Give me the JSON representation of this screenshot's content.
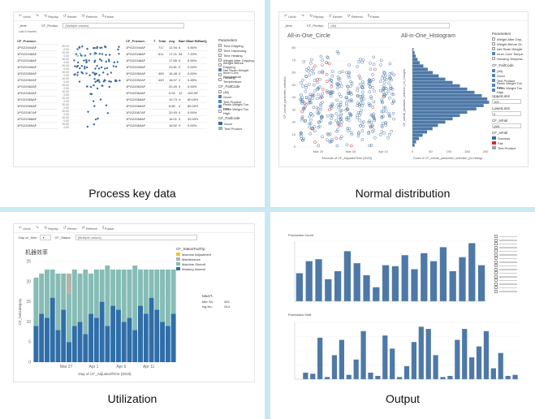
{
  "toolbar": {
    "undo": "Undo",
    "redo": "Redo",
    "replay": "Replay",
    "revert": "Revert",
    "refresh": "Refresh",
    "pause": "Pause"
  },
  "q1": {
    "caption": "Process key data",
    "filter_label": "_time",
    "filter_sub": "Last 4 months",
    "filter2_label": "CF_Produc..",
    "filter2_value": "(Multiple values)",
    "table_header": [
      "CF_Product..",
      "T",
      "Total",
      "Avg",
      "Bad Co..",
      "Bad Ra..",
      "BadQu.."
    ],
    "rows": [
      {
        "id": "1PG22044AF",
        "total": "717",
        "avg": "12.94",
        "bc": "6",
        "br": "0.84%"
      },
      {
        "id": "1PG22046AF",
        "total": "611",
        "avg": "17.21",
        "bc": "44",
        "br": "7.20%"
      },
      {
        "id": "1PG22048AF",
        "total": "",
        "avg": "17.55",
        "bc": "0",
        "br": "0.00%"
      },
      {
        "id": "1PG22049AF",
        "total": "",
        "avg": "23.81",
        "bc": "0",
        "br": "0.00%"
      },
      {
        "id": "1PG22050AF",
        "total": "469",
        "avg": "16.48",
        "bc": "0",
        "br": "0.00%"
      },
      {
        "id": "1PG22052AF",
        "total": "440",
        "avg": "18.97",
        "bc": "2",
        "br": "0.45%"
      },
      {
        "id": "1PG22062AF",
        "total": "",
        "avg": "20.49",
        "bc": "0",
        "br": "0.00%"
      },
      {
        "id": "1PG22064AF",
        "total": "",
        "avg": "0.02",
        "bc": "12",
        "br": "100.00%"
      },
      {
        "id": "1PG22065AF",
        "total": "",
        "avg": "10.73",
        "bc": "4",
        "br": "80.00%"
      },
      {
        "id": "1PG22066AF",
        "total": "",
        "avg": "8.60",
        "bc": "4",
        "br": "80.00%"
      },
      {
        "id": "1PG22067AF",
        "total": "",
        "avg": "20.93",
        "bc": "0",
        "br": "0.00%"
      },
      {
        "id": "1PG22068AF",
        "total": "",
        "avg": "16.01",
        "bc": "3",
        "br": "33.33%"
      },
      {
        "id": "1PG22069AF",
        "total": "",
        "avg": "18.92",
        "bc": "0",
        "br": "0.00%"
      }
    ],
    "axis_ticks": [
      "20.00",
      "0.00"
    ],
    "params_title": "Parameters",
    "params": [
      {
        "label": "Time Dripping",
        "checked": false
      },
      {
        "label": "Time Hardening",
        "checked": false
      },
      {
        "label": "Time Heating",
        "checked": false
      },
      {
        "label": "Weight After Dripping",
        "checked": false
      },
      {
        "label": "Weight Before Dripping",
        "checked": false
      },
      {
        "label": "Net Resin Weight",
        "checked": true
      },
      {
        "label": "Inner Core Temperature",
        "checked": false
      },
      {
        "label": "Housing Temperature",
        "checked": false
      }
    ],
    "failcode_title": "CF_FailCode",
    "failcodes": [
      {
        "label": "(All)",
        "checked": false
      },
      {
        "label": "Good",
        "checked": true
      },
      {
        "label": "Test Product",
        "checked": true
      },
      {
        "label": "Resin Weight Too Low",
        "checked": true
      },
      {
        "label": "Resin Weight Too High",
        "checked": false
      }
    ],
    "failcode2_title": "CF_FailCode",
    "legend": [
      {
        "label": "Good",
        "color": "#3e6a98"
      },
      {
        "label": "Test Product",
        "color": "#86bcb6"
      }
    ]
  },
  "q2": {
    "caption": "Normal distribution",
    "filter_label": "_time",
    "filter2_label": "CF_Produc..",
    "filter2_value": "(All)",
    "title_left": "All-in-One_Circle",
    "title_right": "All-in-One_Histogram",
    "yaxis_left": "CF_overall_parameter_selection",
    "yaxis_right": "CF_overall_parameter_selection_(no_histogra)",
    "xaxis_left": "Seconds of CF_AdjustedTime [2023]",
    "xaxis_right": "Count of CF_overall_parameter_selection_(no histogr...",
    "xticks_left": [
      "Mar 20",
      "Mar 30",
      "Apr 10"
    ],
    "yticks": [
      "80",
      "70",
      "60",
      "50",
      "40",
      "30",
      "20",
      "10",
      "0"
    ],
    "xticks_right": [
      "0",
      "50",
      "100",
      "150",
      "200"
    ],
    "params_title": "Parameters",
    "params": [
      {
        "label": "Weight After Drip..",
        "checked": false
      },
      {
        "label": "Weight Before Dr..",
        "checked": false
      },
      {
        "label": "Net Resin Weight",
        "checked": false
      },
      {
        "label": "Inner Core Tempe..",
        "checked": true
      },
      {
        "label": "Housing Tempera..",
        "checked": false
      }
    ],
    "failcode_title": "CF_FailCode",
    "failcodes": [
      {
        "label": "(All)",
        "checked": true
      },
      {
        "label": "Good",
        "checked": true
      },
      {
        "label": "Test Product",
        "checked": true
      },
      {
        "label": "Resin Weight Too Low",
        "checked": true
      },
      {
        "label": "Resin Weight Too High",
        "checked": true
      }
    ],
    "upper_label": "UpperLimit",
    "upper_value": "100",
    "lower_label": "LowerLimit",
    "lower_value": "0",
    "iswhen_title": "CF_isFail",
    "iswhen_value": "(All)",
    "isfail2_title": "CF_isFail",
    "legend": [
      {
        "label": "Success",
        "color": "#3e6a98"
      },
      {
        "label": "Fail",
        "color": "#d62728"
      },
      {
        "label": "Test Product",
        "color": "#9aa5b4"
      }
    ]
  },
  "q3": {
    "caption": "Utilization",
    "filter_label": "Day of _time",
    "filter2_label": "CF_Status..",
    "filter2_value": "(Multiple values)",
    "title": "机器效率",
    "yaxis": "CF_Subcategory",
    "xaxis": "Day of CF_AdjustedTime [2023]",
    "xticks": [
      "Mar 27",
      "Apr 1",
      "Apr 6",
      "Apr 11"
    ],
    "yticks": [
      "25",
      "20",
      "15",
      "10",
      "5",
      "0"
    ],
    "legend_title": "CF_StatusToolTip",
    "legend": [
      {
        "label": "Machine Adjustment",
        "color": "#f1c232"
      },
      {
        "label": "Maintenance",
        "color": "#bab0ac"
      },
      {
        "label": "Machine Shutoff",
        "color": "#86bcb6"
      },
      {
        "label": "Working Normal",
        "color": "#2f6ea8"
      }
    ],
    "side_title": "tatusT..",
    "side_rows": [
      {
        "label": "Mer Sh..",
        "value": "621"
      },
      {
        "label": "ing No..",
        "value": "614"
      }
    ]
  },
  "q4": {
    "caption": "Output",
    "title_top": "Production Count",
    "title_bottom": "Production Shift",
    "legend_items": 16
  },
  "chart_data": [
    {
      "type": "scatter",
      "title": "All-in-One_Circle",
      "xlabel": "Seconds of CF_AdjustedTime [2023]",
      "ylabel": "CF_overall_parameter_selection",
      "ylim": [
        0,
        80
      ]
    },
    {
      "type": "bar",
      "title": "All-in-One_Histogram",
      "xlabel": "Count of CF_overall_parameter_selection_(no histogr...",
      "ylabel": "CF_overall_parameter_selection_(no_histogra)",
      "bins": [
        8,
        10,
        12,
        14,
        16,
        18,
        20,
        22,
        24,
        26,
        28,
        30,
        32,
        34,
        36,
        38,
        40,
        42,
        44,
        46,
        48,
        50,
        52,
        54,
        56,
        58,
        60,
        62,
        64,
        66
      ],
      "values": [
        6,
        10,
        18,
        28,
        40,
        55,
        70,
        90,
        110,
        130,
        150,
        175,
        195,
        210,
        205,
        190,
        170,
        150,
        130,
        110,
        90,
        72,
        56,
        42,
        30,
        20,
        14,
        9,
        6,
        3
      ],
      "xlim": [
        0,
        200
      ]
    },
    {
      "type": "bar",
      "title": "机器效率",
      "xlabel": "Day of CF_AdjustedTime [2023]",
      "ylabel": "CF_Subcategory",
      "ylim": [
        0,
        25
      ],
      "series": [
        {
          "name": "Working Normal",
          "values": [
            9,
            12,
            11,
            16,
            8,
            13,
            5,
            9,
            10,
            7,
            12,
            11,
            15,
            9,
            14,
            13,
            10,
            11,
            8,
            14,
            12,
            16,
            13,
            10,
            9,
            12
          ]
        },
        {
          "name": "Machine Shutoff",
          "values": [
            12,
            10,
            12,
            7,
            14,
            9,
            12,
            14,
            12,
            16,
            10,
            12,
            8,
            15,
            9,
            10,
            13,
            12,
            16,
            9,
            11,
            7,
            10,
            13,
            14,
            11
          ]
        },
        {
          "name": "Maintenance",
          "values": [
            0,
            0,
            0,
            0,
            0,
            0,
            5,
            0,
            0,
            0,
            0,
            0,
            0,
            0,
            0,
            0,
            0,
            0,
            0,
            0,
            0,
            0,
            0,
            0,
            0,
            0
          ]
        },
        {
          "name": "Machine Adjustment",
          "values": [
            0,
            0,
            0,
            0,
            0,
            0,
            0,
            0,
            0,
            0,
            0,
            0,
            0,
            0,
            0,
            0,
            0,
            0,
            0,
            0,
            0,
            0,
            0,
            0,
            0,
            0
          ]
        }
      ]
    },
    {
      "type": "bar",
      "title": "Production Count",
      "values": [
        28,
        40,
        42,
        22,
        30,
        50,
        38,
        26,
        14,
        36,
        35,
        46,
        32,
        48,
        40,
        54,
        30,
        44,
        58,
        36
      ]
    },
    {
      "type": "bar",
      "title": "Production Shift",
      "values": [
        0,
        6,
        5,
        38,
        2,
        22,
        36,
        4,
        18,
        44,
        6,
        3,
        40,
        28,
        2,
        12,
        34,
        48,
        46,
        22,
        2,
        3,
        36,
        46,
        20,
        30,
        44,
        10,
        24,
        3,
        4
      ]
    }
  ],
  "colors": {
    "bar_blue": "#4e79a7",
    "dark_blue": "#2f6ea8",
    "teal": "#86bcb6",
    "fail_red": "#d62728",
    "separator": "#c9e8f2"
  }
}
